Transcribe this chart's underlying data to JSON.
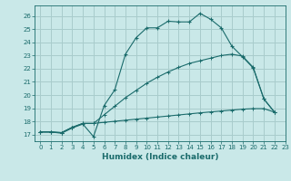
{
  "xlabel": "Humidex (Indice chaleur)",
  "bg_color": "#c9e8e8",
  "grid_color": "#a8cccc",
  "line_color": "#1a6b6b",
  "xlim": [
    -0.5,
    23
  ],
  "ylim": [
    16.5,
    26.8
  ],
  "yticks": [
    17,
    18,
    19,
    20,
    21,
    22,
    23,
    24,
    25,
    26
  ],
  "xticks": [
    0,
    1,
    2,
    3,
    4,
    5,
    6,
    7,
    8,
    9,
    10,
    11,
    12,
    13,
    14,
    15,
    16,
    17,
    18,
    19,
    20,
    21,
    22,
    23
  ],
  "line1_x": [
    0,
    1,
    2,
    3,
    4,
    5,
    6,
    7,
    8,
    9,
    10,
    11,
    12,
    13,
    14,
    15,
    16,
    17,
    18,
    19,
    20,
    21,
    22
  ],
  "line1_y": [
    17.2,
    17.2,
    17.1,
    17.5,
    17.8,
    16.85,
    19.2,
    20.4,
    23.1,
    24.35,
    25.1,
    25.1,
    25.6,
    25.55,
    25.55,
    26.2,
    25.75,
    25.1,
    23.7,
    22.9,
    22.05,
    19.7,
    18.7
  ],
  "line2_x": [
    0,
    1,
    2,
    3,
    4,
    5,
    6,
    7,
    8,
    9,
    10,
    11,
    12,
    13,
    14,
    15,
    16,
    17,
    18,
    19,
    20,
    21,
    22
  ],
  "line2_y": [
    17.2,
    17.2,
    17.15,
    17.55,
    17.85,
    17.85,
    17.93,
    18.01,
    18.09,
    18.17,
    18.25,
    18.33,
    18.41,
    18.49,
    18.57,
    18.65,
    18.72,
    18.79,
    18.86,
    18.93,
    18.97,
    18.97,
    18.7
  ],
  "line3_x": [
    0,
    1,
    2,
    3,
    4,
    5,
    6,
    7,
    8,
    9,
    10,
    11,
    12,
    13,
    14,
    15,
    16,
    17,
    18,
    19,
    20,
    21,
    22
  ],
  "line3_y": [
    17.2,
    17.2,
    17.15,
    17.55,
    17.85,
    17.85,
    18.5,
    19.15,
    19.8,
    20.35,
    20.9,
    21.35,
    21.75,
    22.1,
    22.4,
    22.6,
    22.8,
    23.0,
    23.1,
    22.95,
    22.1,
    19.7,
    18.7
  ]
}
